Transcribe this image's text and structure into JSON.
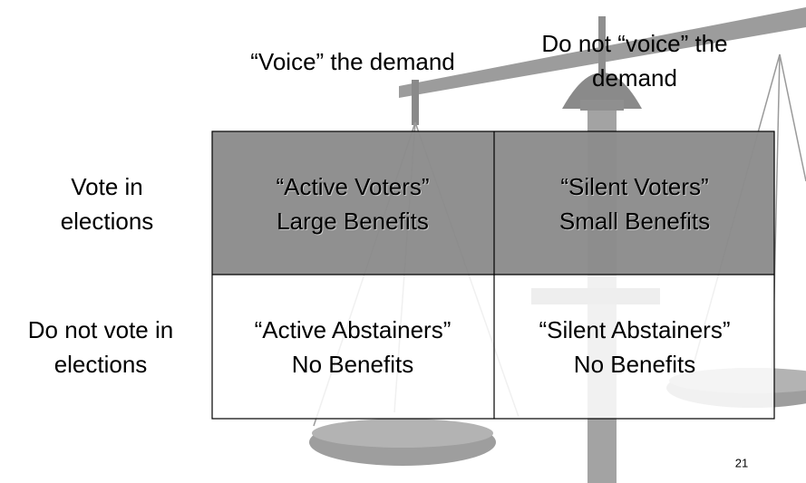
{
  "column_headers": [
    [
      "“Voice” the demand"
    ],
    [
      "Do not “voice” the",
      "demand"
    ]
  ],
  "row_headers": [
    [
      "Vote in",
      "elections"
    ],
    [
      "Do not vote in",
      "elections"
    ]
  ],
  "table": {
    "rows": [
      [
        [
          "“Active Voters”",
          "Large Benefits"
        ],
        [
          "“Silent Voters”",
          "Small Benefits"
        ]
      ],
      [
        [
          "“Active Abstainers”",
          "No Benefits"
        ],
        [
          "“Silent Abstainers”",
          "No Benefits"
        ]
      ]
    ]
  },
  "page_number": "21"
}
